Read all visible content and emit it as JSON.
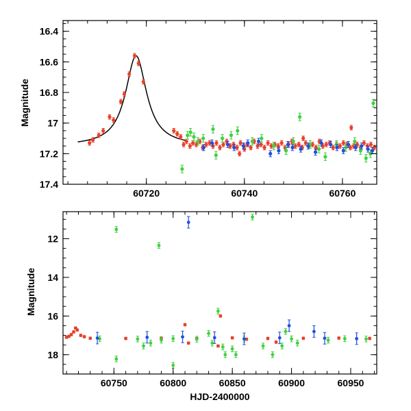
{
  "colors": {
    "red": "#e8402a",
    "green": "#3fd13f",
    "blue": "#1f4fe0",
    "axis": "#000000"
  },
  "chart_data": [
    {
      "type": "scatter",
      "panel": "top",
      "ylabel": "Magnitude",
      "xlabel": "",
      "xlim": [
        60703,
        60767
      ],
      "ylim": [
        17.4,
        16.33
      ],
      "inverted_y": true,
      "x_ticks": [
        60720,
        60740,
        60760
      ],
      "x_tick_labels": [
        "60720",
        "60740",
        "60760"
      ],
      "y_ticks": [
        16.4,
        16.6,
        16.8,
        17.0,
        17.2,
        17.4
      ],
      "y_tick_labels": [
        "16.4",
        "16.6",
        "16.8",
        "17",
        "17.2",
        "17.4"
      ],
      "model": {
        "name": "microlensing fit",
        "t0": 60717.9,
        "peak_mag": 16.56,
        "base_mag": 17.15,
        "width": 2.6,
        "x_start": 60706,
        "x_end": 60728
      },
      "series": [
        {
          "name": "red",
          "color_key": "red",
          "err": 0.015,
          "points": [
            [
              60708.4,
              17.13
            ],
            [
              60709.1,
              17.11
            ],
            [
              60710.3,
              17.08
            ],
            [
              60711.2,
              17.05
            ],
            [
              60712.5,
              16.96
            ],
            [
              60713.3,
              16.98
            ],
            [
              60714.8,
              16.86
            ],
            [
              60715.5,
              16.81
            ],
            [
              60716.5,
              16.68
            ],
            [
              60717.6,
              16.56
            ],
            [
              60718.4,
              16.61
            ],
            [
              60719.4,
              16.73
            ],
            [
              60725.6,
              17.05
            ],
            [
              60726.3,
              17.07
            ],
            [
              60727.0,
              17.09
            ],
            [
              60727.6,
              17.14
            ],
            [
              60728.2,
              17.12
            ],
            [
              60728.9,
              17.15
            ],
            [
              60729.5,
              17.13
            ],
            [
              60730.2,
              17.14
            ],
            [
              60730.9,
              17.12
            ],
            [
              60731.5,
              17.16
            ],
            [
              60732.2,
              17.14
            ],
            [
              60732.9,
              17.13
            ],
            [
              60733.6,
              17.15
            ],
            [
              60734.3,
              17.13
            ],
            [
              60735.0,
              17.16
            ],
            [
              60735.7,
              17.14
            ],
            [
              60736.4,
              17.12
            ],
            [
              60737.1,
              17.15
            ],
            [
              60737.8,
              17.14
            ],
            [
              60738.5,
              17.16
            ],
            [
              60739.2,
              17.13
            ],
            [
              60739.9,
              17.15
            ],
            [
              60740.6,
              17.14
            ],
            [
              60741.3,
              17.16
            ],
            [
              60742.0,
              17.12
            ],
            [
              60742.7,
              17.15
            ],
            [
              60743.4,
              17.14
            ],
            [
              60744.1,
              17.16
            ],
            [
              60744.8,
              17.13
            ],
            [
              60745.5,
              17.15
            ],
            [
              60746.2,
              17.14
            ],
            [
              60746.9,
              17.15
            ],
            [
              60747.6,
              17.13
            ],
            [
              60748.3,
              17.16
            ],
            [
              60749.0,
              17.14
            ],
            [
              60749.7,
              17.12
            ],
            [
              60750.4,
              17.15
            ],
            [
              60751.1,
              17.14
            ],
            [
              60751.8,
              17.16
            ],
            [
              60752.5,
              17.13
            ],
            [
              60753.2,
              17.15
            ],
            [
              60753.9,
              17.14
            ],
            [
              60754.6,
              17.16
            ],
            [
              60755.3,
              17.12
            ],
            [
              60756.0,
              17.15
            ],
            [
              60756.7,
              17.14
            ],
            [
              60757.4,
              17.13
            ],
            [
              60758.1,
              17.16
            ],
            [
              60758.8,
              17.14
            ],
            [
              60759.5,
              17.15
            ],
            [
              60760.2,
              17.13
            ],
            [
              60760.9,
              17.14
            ],
            [
              60761.6,
              17.16
            ],
            [
              60762.3,
              17.15
            ],
            [
              60763.0,
              17.14
            ],
            [
              60763.7,
              17.16
            ],
            [
              60764.4,
              17.13
            ],
            [
              60765.1,
              17.15
            ],
            [
              60765.8,
              17.14
            ],
            [
              60766.5,
              17.16
            ],
            [
              60740.0,
              17.17
            ],
            [
              60739.0,
              17.2
            ],
            [
              60752.0,
              17.1
            ],
            [
              60761.8,
              17.03
            ]
          ]
        },
        {
          "name": "green",
          "color_key": "green",
          "err": 0.025,
          "points": [
            [
              60727.3,
              17.3
            ],
            [
              60728.4,
              17.08
            ],
            [
              60729.0,
              17.06
            ],
            [
              60729.7,
              17.09
            ],
            [
              60730.5,
              17.12
            ],
            [
              60731.6,
              17.1
            ],
            [
              60733.6,
              17.04
            ],
            [
              60734.2,
              17.21
            ],
            [
              60735.5,
              17.1
            ],
            [
              60737.3,
              17.08
            ],
            [
              60738.6,
              17.05
            ],
            [
              60741.6,
              17.12
            ],
            [
              60743.5,
              17.1
            ],
            [
              60746.0,
              17.15
            ],
            [
              60748.5,
              17.18
            ],
            [
              60750.0,
              17.12
            ],
            [
              60751.3,
              16.96
            ],
            [
              60753.4,
              17.14
            ],
            [
              60755.2,
              17.17
            ],
            [
              60756.5,
              17.22
            ],
            [
              60758.8,
              17.14
            ],
            [
              60760.7,
              17.16
            ],
            [
              60762.5,
              17.12
            ],
            [
              60763.7,
              17.18
            ],
            [
              60764.8,
              17.23
            ],
            [
              60765.7,
              17.2
            ],
            [
              60766.3,
              16.87
            ]
          ]
        },
        {
          "name": "blue",
          "color_key": "blue",
          "err": 0.02,
          "points": [
            [
              60731.7,
              17.16
            ],
            [
              60733.4,
              17.13
            ],
            [
              60736.6,
              17.14
            ],
            [
              60737.9,
              17.16
            ],
            [
              60739.8,
              17.15
            ],
            [
              60740.7,
              17.13
            ],
            [
              60742.9,
              17.12
            ],
            [
              60745.3,
              17.2
            ],
            [
              60747.0,
              17.18
            ],
            [
              60748.9,
              17.14
            ],
            [
              60749.8,
              17.16
            ],
            [
              60751.5,
              17.17
            ],
            [
              60753.0,
              17.15
            ],
            [
              60754.5,
              17.19
            ],
            [
              60755.7,
              17.13
            ],
            [
              60757.6,
              17.14
            ],
            [
              60758.9,
              17.16
            ],
            [
              60760.2,
              17.18
            ],
            [
              60761.2,
              17.14
            ],
            [
              60762.7,
              17.16
            ],
            [
              60763.9,
              17.15
            ],
            [
              60765.2,
              17.17
            ],
            [
              60766.1,
              17.18
            ]
          ]
        }
      ]
    },
    {
      "type": "scatter",
      "panel": "bottom",
      "ylabel": "Magnitude",
      "xlabel": "HJD-2400000",
      "xlim": [
        60707,
        60972
      ],
      "ylim": [
        19.0,
        10.6
      ],
      "inverted_y": true,
      "x_ticks": [
        60750,
        60800,
        60850,
        60900,
        60950
      ],
      "x_tick_labels": [
        "60750",
        "60800",
        "60850",
        "60900",
        "60950"
      ],
      "y_ticks": [
        12,
        14,
        16,
        18
      ],
      "y_tick_labels": [
        "12",
        "14",
        "16",
        "18"
      ],
      "series": [
        {
          "name": "red",
          "color_key": "red",
          "err": 0.06,
          "points": [
            [
              60710,
              17.1
            ],
            [
              60712,
              17.05
            ],
            [
              60714,
              16.96
            ],
            [
              60716,
              16.82
            ],
            [
              60717.6,
              16.62
            ],
            [
              60719,
              16.72
            ],
            [
              60722,
              17.0
            ],
            [
              60725,
              17.07
            ],
            [
              60810,
              16.45
            ],
            [
              60813,
              17.4
            ],
            [
              60840,
              16.0
            ],
            [
              60838,
              17.55
            ],
            [
              60862,
              17.2
            ],
            [
              60887,
              17.35
            ],
            [
              60730,
              17.15
            ],
            [
              60760,
              17.16
            ],
            [
              60790,
              17.14
            ],
            [
              60820,
              17.17
            ],
            [
              60850,
              17.13
            ],
            [
              60880,
              17.16
            ],
            [
              60910,
              17.15
            ],
            [
              60940,
              17.14
            ],
            [
              60966,
              17.16
            ]
          ]
        },
        {
          "name": "green",
          "color_key": "green",
          "err": 0.15,
          "points": [
            [
              60752,
              11.52
            ],
            [
              60788,
              12.35
            ],
            [
              60867,
              10.88
            ],
            [
              60752,
              18.22
            ],
            [
              60800,
              18.55
            ],
            [
              60838,
              15.75
            ],
            [
              60781,
              17.4
            ],
            [
              60790,
              17.25
            ],
            [
              60775,
              17.55
            ],
            [
              60833,
              17.4
            ],
            [
              60842,
              17.6
            ],
            [
              60844,
              18.0
            ],
            [
              60850,
              17.7
            ],
            [
              60853,
              18.0
            ],
            [
              60876,
              17.55
            ],
            [
              60884,
              18.0
            ],
            [
              60892,
              17.55
            ],
            [
              60905,
              17.4
            ],
            [
              60931,
              17.25
            ],
            [
              60738,
              17.18
            ],
            [
              60770,
              17.19
            ],
            [
              60800,
              17.17
            ],
            [
              60820,
              17.2
            ],
            [
              60860,
              17.19
            ],
            [
              60900,
              17.18
            ],
            [
              60945,
              17.17
            ],
            [
              60963,
              17.19
            ],
            [
              60895,
              16.8
            ],
            [
              60830,
              16.9
            ]
          ]
        },
        {
          "name": "blue",
          "color_key": "blue",
          "err": 0.3,
          "points": [
            [
              60813,
              11.15
            ],
            [
              60898,
              16.5
            ],
            [
              60919,
              16.8
            ],
            [
              60736,
              17.14
            ],
            [
              60778,
              17.1
            ],
            [
              60808,
              17.08
            ],
            [
              60835,
              17.12
            ],
            [
              60860,
              17.18
            ],
            [
              60890,
              17.13
            ],
            [
              60928,
              17.15
            ],
            [
              60955,
              17.17
            ]
          ]
        }
      ]
    }
  ]
}
